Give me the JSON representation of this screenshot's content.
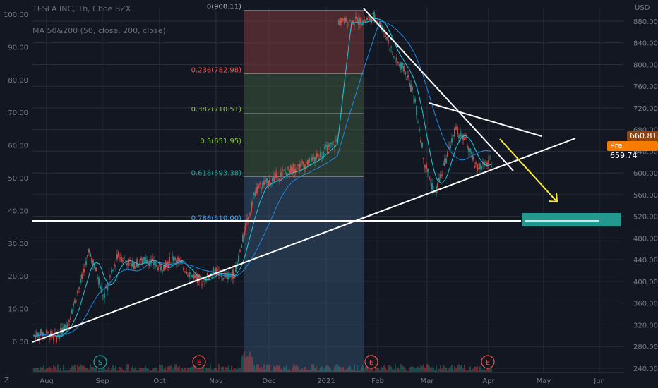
{
  "header": {
    "symbol_line": "TESLA INC, 1h, Cboe BZX",
    "indicator_line": "MA 50&200 (50, close, 200, close)"
  },
  "corner": {
    "left": "Z",
    "right_unit": "USD"
  },
  "colors": {
    "background": "#131722",
    "grid": "#2a2e39",
    "candle_up": "#26a69a",
    "candle_down": "#ef5350",
    "fib_red": "#7c3a3a",
    "fib_green": "#3c5a3c",
    "fib_blue": "#34506b",
    "trend": "#ffffff",
    "arrow": "#ffeb3b",
    "target_box": "#26a69a",
    "last_price": "#8b4513",
    "pre_price": "#f57c00"
  },
  "chart_data": {
    "type": "candlestick",
    "x_labels": [
      "Aug",
      "Sep",
      "Oct",
      "Nov",
      "Dec",
      "2021",
      "Feb",
      "Mar",
      "Apr",
      "May",
      "Jun"
    ],
    "left_axis_ticks": [
      "0.00",
      "10.00",
      "20.00",
      "30.00",
      "40.00",
      "50.00",
      "60.00",
      "70.00",
      "80.00",
      "90.00",
      "100.00"
    ],
    "right_axis_ticks": [
      "240.00",
      "280.00",
      "320.00",
      "360.00",
      "400.00",
      "440.00",
      "480.00",
      "520.00",
      "560.00",
      "600.00",
      "640.00",
      "680.00",
      "720.00",
      "760.00",
      "800.00",
      "840.00",
      "880.00"
    ],
    "ylim_usd": [
      232,
      906
    ],
    "price_path": [
      [
        "Aug",
        300
      ],
      [
        "Aug",
        305
      ],
      [
        "Aug",
        296
      ],
      [
        "Aug",
        320
      ],
      [
        "Aug",
        385
      ],
      [
        "Sep",
        455
      ],
      [
        "Sep",
        372
      ],
      [
        "Sep",
        448
      ],
      [
        "Sep",
        430
      ],
      [
        "Oct",
        440
      ],
      [
        "Oct",
        425
      ],
      [
        "Oct",
        445
      ],
      [
        "Oct",
        415
      ],
      [
        "Nov",
        400
      ],
      [
        "Nov",
        420
      ],
      [
        "Nov",
        408
      ],
      [
        "Nov",
        415
      ],
      [
        "Nov",
        500
      ],
      [
        "Dec",
        570
      ],
      [
        "Dec",
        600
      ],
      [
        "Dec",
        620
      ],
      [
        "Dec",
        660
      ],
      [
        "2021",
        690
      ],
      [
        "2021",
        760
      ],
      [
        "2021",
        870
      ],
      [
        "2021",
        860
      ],
      [
        "2021",
        870
      ],
      [
        "Feb",
        880
      ],
      [
        "Feb",
        890
      ],
      [
        "Feb",
        860
      ],
      [
        "Feb",
        810
      ],
      [
        "Feb",
        790
      ],
      [
        "Mar",
        740
      ],
      [
        "Mar",
        620
      ],
      [
        "Mar",
        560
      ],
      [
        "Mar",
        620
      ],
      [
        "Mar",
        680
      ],
      [
        "Mar",
        660
      ],
      [
        "Apr",
        610
      ],
      [
        "Apr",
        620
      ],
      [
        "Apr",
        660
      ]
    ],
    "fibonacci": [
      {
        "label": "0(900.11)",
        "price": 900.11
      },
      {
        "label": "0.236(782.98)",
        "price": 782.98
      },
      {
        "label": "0.382(710.51)",
        "price": 710.51
      },
      {
        "label": "0.5(651.95)",
        "price": 651.95
      },
      {
        "label": "0.618(593.38)",
        "price": 593.38
      },
      {
        "label": "0.786(510.00)",
        "price": 510.0
      }
    ],
    "last_price": {
      "value": "660.81"
    },
    "pre_price": {
      "prefix": "Pre",
      "value": "659.74"
    },
    "event_markers": [
      {
        "letter": "S",
        "month": "Sep"
      },
      {
        "letter": "E",
        "month": "Oct"
      },
      {
        "letter": "E",
        "month": "Feb"
      },
      {
        "letter": "E",
        "month": "Apr"
      }
    ],
    "grid": true
  }
}
